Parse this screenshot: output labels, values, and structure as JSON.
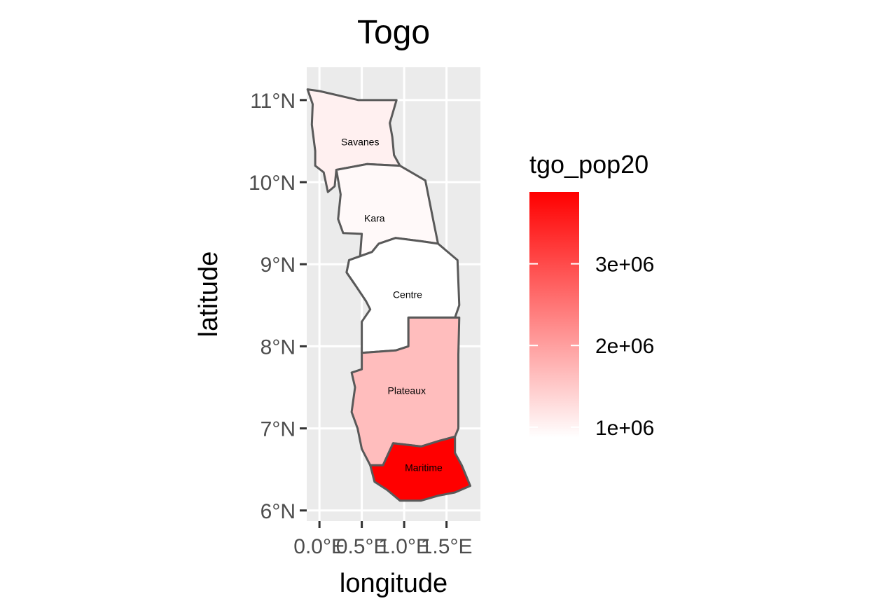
{
  "chart_data": {
    "type": "choropleth",
    "title": "Togo",
    "xlabel": "longitude",
    "ylabel": "latitude",
    "x_ticks": [
      {
        "value": 0.0,
        "label": "0.0°E"
      },
      {
        "value": 0.5,
        "label": "0.5°E"
      },
      {
        "value": 1.0,
        "label": "1.0°E"
      },
      {
        "value": 1.5,
        "label": "1.5°E"
      }
    ],
    "y_ticks": [
      {
        "value": 6,
        "label": "6°N"
      },
      {
        "value": 7,
        "label": "7°N"
      },
      {
        "value": 8,
        "label": "8°N"
      },
      {
        "value": 9,
        "label": "9°N"
      },
      {
        "value": 10,
        "label": "10°N"
      },
      {
        "value": 11,
        "label": "11°N"
      }
    ],
    "xlim": [
      -0.15,
      1.9
    ],
    "ylim": [
      5.87,
      11.4
    ],
    "fill_variable": "tgo_pop20",
    "color_low": "#ffffff",
    "color_high": "#ff0000",
    "legend": {
      "title": "tgo_pop20",
      "position": "right",
      "range": [
        870000,
        3880000
      ],
      "breaks": [
        {
          "value": 1000000,
          "label": "1e+06"
        },
        {
          "value": 2000000,
          "label": "2e+06"
        },
        {
          "value": 3000000,
          "label": "3e+06"
        }
      ]
    },
    "regions": [
      {
        "name": "Savanes",
        "value": 1050000,
        "label_lon": 0.48,
        "label_lat": 10.48,
        "outline": [
          [
            -0.14,
            11.13
          ],
          [
            0.0,
            11.11
          ],
          [
            0.46,
            11.0
          ],
          [
            0.91,
            11.0
          ],
          [
            0.83,
            10.72
          ],
          [
            0.86,
            10.55
          ],
          [
            0.88,
            10.33
          ],
          [
            0.95,
            10.2
          ],
          [
            0.56,
            10.22
          ],
          [
            0.2,
            10.15
          ],
          [
            0.18,
            9.95
          ],
          [
            0.1,
            9.88
          ],
          [
            0.05,
            10.12
          ],
          [
            -0.05,
            10.2
          ],
          [
            -0.05,
            10.38
          ],
          [
            -0.09,
            10.7
          ],
          [
            -0.08,
            10.95
          ]
        ]
      },
      {
        "name": "Kara",
        "value": 940000,
        "label_lon": 0.65,
        "label_lat": 9.55,
        "outline": [
          [
            0.56,
            10.22
          ],
          [
            0.95,
            10.2
          ],
          [
            1.25,
            10.02
          ],
          [
            1.35,
            9.5
          ],
          [
            1.4,
            9.25
          ],
          [
            1.2,
            9.28
          ],
          [
            0.9,
            9.32
          ],
          [
            0.7,
            9.25
          ],
          [
            0.62,
            9.15
          ],
          [
            0.35,
            9.05
          ],
          [
            0.32,
            8.9
          ],
          [
            0.42,
            8.75
          ],
          [
            0.48,
            9.1
          ],
          [
            0.5,
            9.37
          ],
          [
            0.28,
            9.38
          ],
          [
            0.22,
            9.55
          ],
          [
            0.25,
            9.85
          ],
          [
            0.2,
            10.15
          ]
        ]
      },
      {
        "name": "Centre",
        "value": 870000,
        "label_lon": 1.04,
        "label_lat": 8.62,
        "outline": [
          [
            0.35,
            9.05
          ],
          [
            0.62,
            9.15
          ],
          [
            0.7,
            9.25
          ],
          [
            0.9,
            9.32
          ],
          [
            1.2,
            9.28
          ],
          [
            1.4,
            9.25
          ],
          [
            1.63,
            9.05
          ],
          [
            1.65,
            8.5
          ],
          [
            1.6,
            8.35
          ],
          [
            1.05,
            8.35
          ],
          [
            1.05,
            8.0
          ],
          [
            0.9,
            7.95
          ],
          [
            0.5,
            7.92
          ],
          [
            0.5,
            8.3
          ],
          [
            0.6,
            8.45
          ],
          [
            0.55,
            8.55
          ],
          [
            0.42,
            8.75
          ],
          [
            0.32,
            8.9
          ]
        ]
      },
      {
        "name": "Plateaux",
        "value": 1650000,
        "label_lon": 1.03,
        "label_lat": 7.45,
        "outline": [
          [
            0.5,
            7.92
          ],
          [
            0.9,
            7.95
          ],
          [
            1.05,
            8.0
          ],
          [
            1.05,
            8.35
          ],
          [
            1.65,
            8.35
          ],
          [
            1.64,
            7.9
          ],
          [
            1.64,
            7.0
          ],
          [
            1.6,
            6.9
          ],
          [
            1.42,
            6.85
          ],
          [
            1.2,
            6.78
          ],
          [
            0.87,
            6.82
          ],
          [
            0.75,
            6.55
          ],
          [
            0.6,
            6.55
          ],
          [
            0.5,
            6.75
          ],
          [
            0.45,
            7.0
          ],
          [
            0.38,
            7.2
          ],
          [
            0.42,
            7.5
          ],
          [
            0.38,
            7.68
          ],
          [
            0.5,
            7.72
          ]
        ]
      },
      {
        "name": "Maritime",
        "value": 3880000,
        "label_lon": 1.23,
        "label_lat": 6.51,
        "outline": [
          [
            0.87,
            6.82
          ],
          [
            1.2,
            6.78
          ],
          [
            1.42,
            6.85
          ],
          [
            1.6,
            6.9
          ],
          [
            1.6,
            6.7
          ],
          [
            1.68,
            6.55
          ],
          [
            1.78,
            6.3
          ],
          [
            1.6,
            6.22
          ],
          [
            1.4,
            6.18
          ],
          [
            1.2,
            6.12
          ],
          [
            0.95,
            6.12
          ],
          [
            0.8,
            6.25
          ],
          [
            0.65,
            6.35
          ],
          [
            0.6,
            6.55
          ],
          [
            0.75,
            6.55
          ]
        ]
      }
    ]
  }
}
